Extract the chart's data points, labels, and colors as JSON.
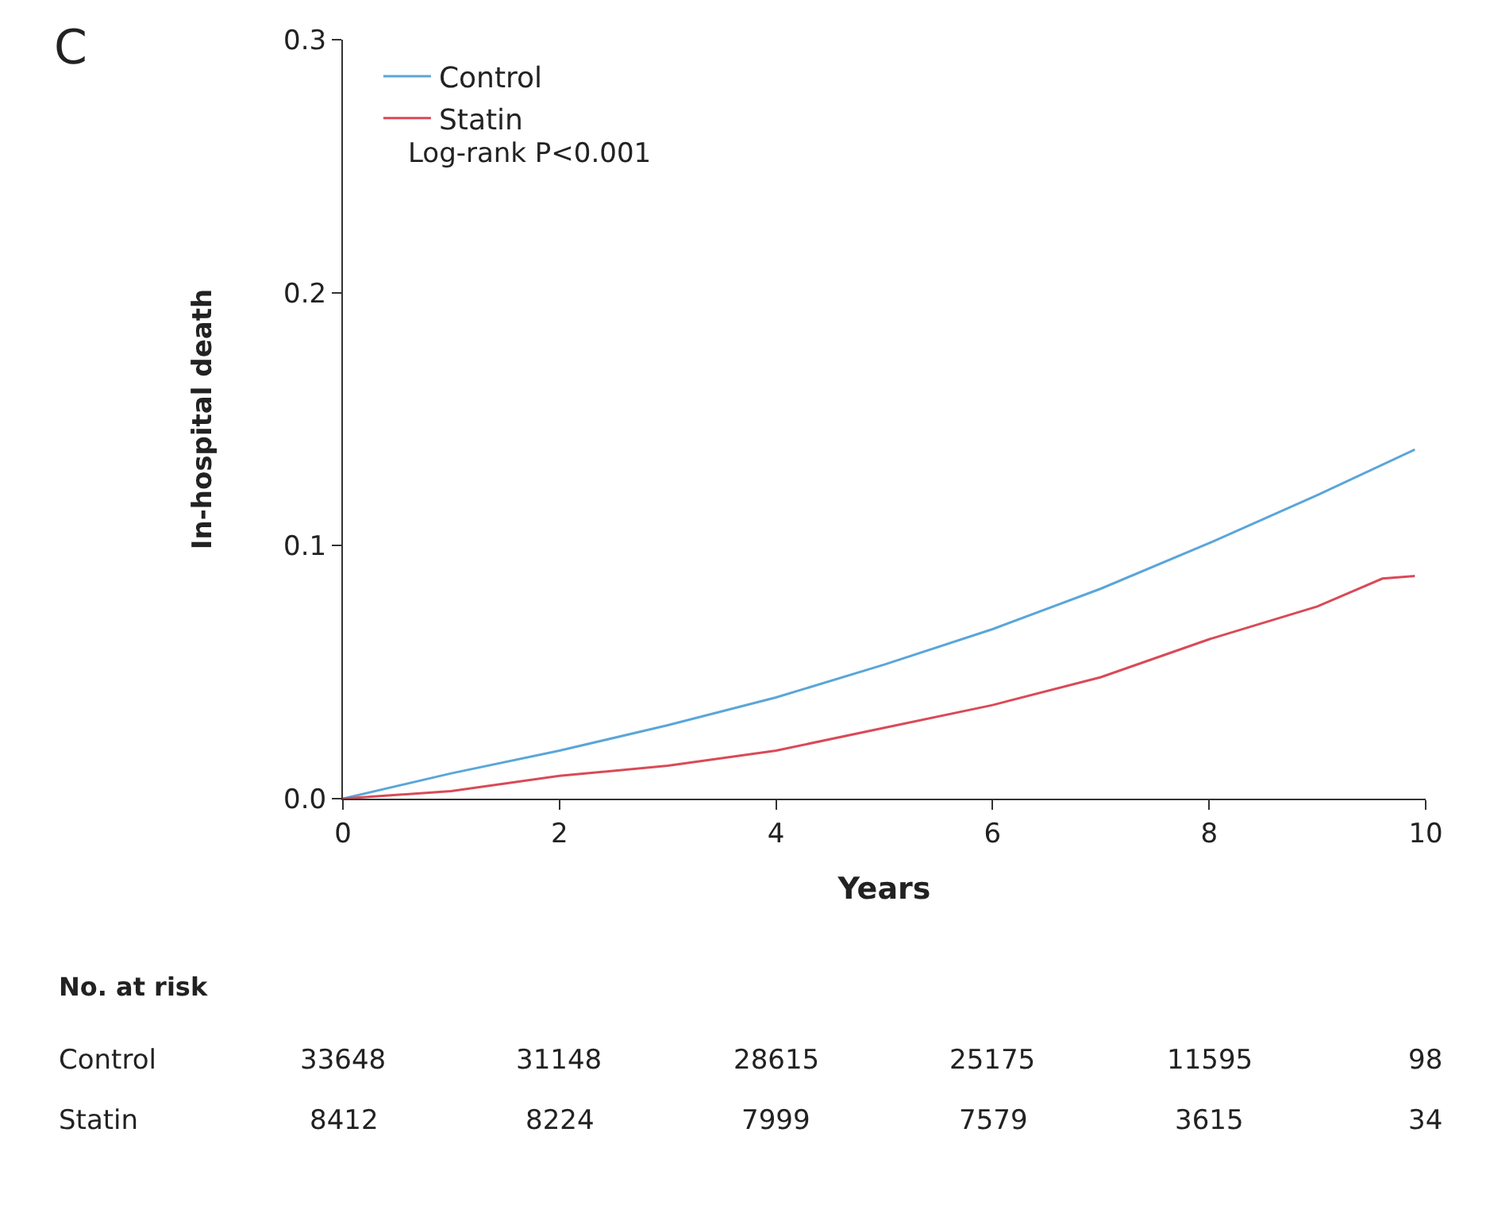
{
  "chart_data": {
    "type": "line",
    "xlabel": "Years",
    "ylabel": "In-hospital death",
    "series": [
      {
        "name": "Control",
        "color": "#5aa6d8",
        "x": [
          0,
          1,
          2,
          3,
          4,
          5,
          6,
          7,
          8,
          9,
          9.9
        ],
        "values": [
          0,
          0.01,
          0.019,
          0.029,
          0.04,
          0.053,
          0.067,
          0.083,
          0.101,
          0.12,
          0.138
        ]
      },
      {
        "name": "Statin",
        "color": "#d94a57",
        "x": [
          0,
          1,
          2,
          3,
          4,
          5,
          6,
          7,
          8,
          9,
          9.6,
          9.9
        ],
        "values": [
          0,
          0.003,
          0.009,
          0.013,
          0.019,
          0.028,
          0.037,
          0.048,
          0.063,
          0.076,
          0.087,
          0.088
        ]
      }
    ],
    "xlim": [
      0,
      10
    ],
    "xticks": [
      0,
      2,
      4,
      6,
      8,
      10
    ],
    "ylim": [
      0,
      0.3
    ],
    "yticks": [
      {
        "value": 0,
        "label": "0.0"
      },
      {
        "value": 0.1,
        "label": "0.1"
      },
      {
        "value": 0.2,
        "label": "0.2"
      },
      {
        "value": 0.3,
        "label": "0.3"
      }
    ],
    "legend": "top left",
    "marker": "none",
    "line_style": "solid",
    "annotations": [
      "C",
      "Log-rank P<0.001",
      "No. at risk",
      "Control",
      "33648",
      "31148",
      "28615",
      "25175",
      "11595",
      "98",
      "Statin",
      "8412",
      "8224",
      "7999",
      "7579",
      "3615",
      "34"
    ]
  }
}
